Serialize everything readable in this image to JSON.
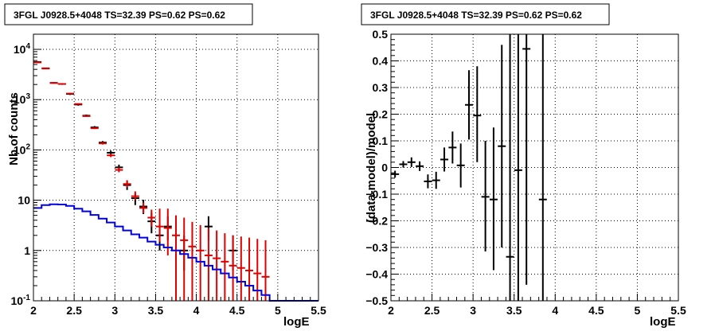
{
  "chart_data": [
    {
      "type": "scatter",
      "title": "3FGL J0928.5+4048 TS=32.39 PS=0.62 PS=0.62",
      "xlabel": "logE",
      "ylabel": "Nb of counts",
      "xlim": [
        2,
        5.5
      ],
      "ylim": [
        0.1,
        20000
      ],
      "yscale": "log",
      "grid": true,
      "x_ticks": [
        "2",
        "2.5",
        "3",
        "3.5",
        "4",
        "4.5",
        "5",
        "5.5"
      ],
      "y_ticks": [
        {
          "value": 0.1,
          "label": "10",
          "sup": "-1"
        },
        {
          "value": 1,
          "label": "1",
          "sup": ""
        },
        {
          "value": 10,
          "label": "10",
          "sup": ""
        },
        {
          "value": 100,
          "label": "10",
          "sup": "2"
        },
        {
          "value": 1000,
          "label": "10",
          "sup": "3"
        },
        {
          "value": 10000,
          "label": "10",
          "sup": "4"
        }
      ],
      "series": [
        {
          "color": "#000000",
          "style": "errorbar",
          "points": [
            {
              "x": 2.05,
              "y": 5600,
              "lo": 5450,
              "hi": 5750
            },
            {
              "x": 2.15,
              "y": 4200,
              "lo": 4080,
              "hi": 4320
            },
            {
              "x": 2.25,
              "y": 2150,
              "lo": 2070,
              "hi": 2230
            },
            {
              "x": 2.35,
              "y": 2050,
              "lo": 1970,
              "hi": 2130
            },
            {
              "x": 2.45,
              "y": 1300,
              "lo": 1240,
              "hi": 1360
            },
            {
              "x": 2.55,
              "y": 800,
              "lo": 760,
              "hi": 840
            },
            {
              "x": 2.65,
              "y": 480,
              "lo": 455,
              "hi": 505
            },
            {
              "x": 2.75,
              "y": 280,
              "lo": 262,
              "hi": 298
            },
            {
              "x": 2.85,
              "y": 140,
              "lo": 130,
              "hi": 150
            },
            {
              "x": 2.95,
              "y": 88,
              "lo": 79,
              "hi": 97
            },
            {
              "x": 3.05,
              "y": 45,
              "lo": 39,
              "hi": 51
            },
            {
              "x": 3.15,
              "y": 20,
              "lo": 16,
              "hi": 24
            },
            {
              "x": 3.25,
              "y": 11,
              "lo": 8,
              "hi": 14
            },
            {
              "x": 3.35,
              "y": 7.5,
              "lo": 5.3,
              "hi": 10.2
            },
            {
              "x": 3.45,
              "y": 3.8,
              "lo": 2.2,
              "hi": 5.6
            },
            {
              "x": 3.55,
              "y": 2.0,
              "lo": 1.0,
              "hi": 3.3
            },
            {
              "x": 3.65,
              "y": 3.0,
              "lo": 1.6,
              "hi": 4.8
            },
            {
              "x": 3.85,
              "y": 1.0,
              "lo": 0.4,
              "hi": 2.0
            },
            {
              "x": 4.15,
              "y": 3.0,
              "lo": 1.6,
              "hi": 4.8
            },
            {
              "x": 4.45,
              "y": 1.0,
              "lo": 0.4,
              "hi": 2.0
            }
          ]
        },
        {
          "color": "#e00000",
          "style": "errorbar",
          "points": [
            {
              "x": 2.05,
              "y": 5500,
              "lo": 5430,
              "hi": 5570
            },
            {
              "x": 2.15,
              "y": 4150,
              "lo": 4090,
              "hi": 4210
            },
            {
              "x": 2.25,
              "y": 2150,
              "lo": 2110,
              "hi": 2190
            },
            {
              "x": 2.35,
              "y": 2050,
              "lo": 2010,
              "hi": 2090
            },
            {
              "x": 2.45,
              "y": 1320,
              "lo": 1290,
              "hi": 1350
            },
            {
              "x": 2.55,
              "y": 820,
              "lo": 800,
              "hi": 840
            },
            {
              "x": 2.65,
              "y": 470,
              "lo": 455,
              "hi": 485
            },
            {
              "x": 2.75,
              "y": 270,
              "lo": 260,
              "hi": 280
            },
            {
              "x": 2.85,
              "y": 135,
              "lo": 128,
              "hi": 142
            },
            {
              "x": 2.95,
              "y": 78,
              "lo": 72,
              "hi": 84
            },
            {
              "x": 3.05,
              "y": 40,
              "lo": 36,
              "hi": 45
            },
            {
              "x": 3.15,
              "y": 21,
              "lo": 18,
              "hi": 25
            },
            {
              "x": 3.25,
              "y": 12,
              "lo": 10,
              "hi": 15
            },
            {
              "x": 3.35,
              "y": 7,
              "lo": 5.5,
              "hi": 9
            },
            {
              "x": 3.45,
              "y": 4.5,
              "lo": 3.0,
              "hi": 6.5
            },
            {
              "x": 3.55,
              "y": 3.0,
              "lo": 1.5,
              "hi": 6.8
            },
            {
              "x": 3.65,
              "y": 2.8,
              "lo": 0.8,
              "hi": 6.8
            },
            {
              "x": 3.75,
              "y": 2.0,
              "lo": 0.1,
              "hi": 5.0
            },
            {
              "x": 3.85,
              "y": 1.6,
              "lo": 0.1,
              "hi": 4.5
            },
            {
              "x": 3.95,
              "y": 1.2,
              "lo": 0.1,
              "hi": 3.7
            },
            {
              "x": 4.05,
              "y": 1.0,
              "lo": 0.1,
              "hi": 3.2
            },
            {
              "x": 4.15,
              "y": 0.8,
              "lo": 0.1,
              "hi": 2.8
            },
            {
              "x": 4.25,
              "y": 0.7,
              "lo": 0.1,
              "hi": 2.5
            },
            {
              "x": 4.35,
              "y": 0.6,
              "lo": 0.1,
              "hi": 2.2
            },
            {
              "x": 4.45,
              "y": 0.5,
              "lo": 0.1,
              "hi": 2.0
            },
            {
              "x": 4.55,
              "y": 0.45,
              "lo": 0.1,
              "hi": 1.9
            },
            {
              "x": 4.65,
              "y": 0.4,
              "lo": 0.1,
              "hi": 1.8
            },
            {
              "x": 4.75,
              "y": 0.35,
              "lo": 0.1,
              "hi": 1.7
            },
            {
              "x": 4.85,
              "y": 0.3,
              "lo": 0.1,
              "hi": 1.6
            }
          ]
        },
        {
          "color": "#0000e0",
          "style": "step",
          "bin_width": 0.1,
          "points": [
            {
              "x": 2.05,
              "y": 7.0
            },
            {
              "x": 2.15,
              "y": 8.0
            },
            {
              "x": 2.25,
              "y": 8.3
            },
            {
              "x": 2.35,
              "y": 8.2
            },
            {
              "x": 2.45,
              "y": 7.7
            },
            {
              "x": 2.55,
              "y": 6.8
            },
            {
              "x": 2.65,
              "y": 6.0
            },
            {
              "x": 2.75,
              "y": 5.1
            },
            {
              "x": 2.85,
              "y": 4.3
            },
            {
              "x": 2.95,
              "y": 3.6
            },
            {
              "x": 3.05,
              "y": 3.0
            },
            {
              "x": 3.15,
              "y": 2.5
            },
            {
              "x": 3.25,
              "y": 2.1
            },
            {
              "x": 3.35,
              "y": 1.8
            },
            {
              "x": 3.45,
              "y": 1.5
            },
            {
              "x": 3.55,
              "y": 1.3
            },
            {
              "x": 3.65,
              "y": 1.15
            },
            {
              "x": 3.75,
              "y": 1.0
            },
            {
              "x": 3.85,
              "y": 0.85
            },
            {
              "x": 3.95,
              "y": 0.72
            },
            {
              "x": 4.05,
              "y": 0.6
            },
            {
              "x": 4.15,
              "y": 0.5
            },
            {
              "x": 4.25,
              "y": 0.42
            },
            {
              "x": 4.35,
              "y": 0.35
            },
            {
              "x": 4.45,
              "y": 0.29
            },
            {
              "x": 4.55,
              "y": 0.24
            },
            {
              "x": 4.65,
              "y": 0.2
            },
            {
              "x": 4.75,
              "y": 0.16
            },
            {
              "x": 4.85,
              "y": 0.13
            },
            {
              "x": 4.95,
              "y": 0.1
            },
            {
              "x": 5.05,
              "y": 0.1
            },
            {
              "x": 5.15,
              "y": 0.1
            },
            {
              "x": 5.25,
              "y": 0.1
            },
            {
              "x": 5.35,
              "y": 0.1
            },
            {
              "x": 5.45,
              "y": 0.1
            }
          ]
        }
      ]
    },
    {
      "type": "scatter",
      "title": "3FGL J0928.5+4048 TS=32.39 PS=0.62 PS=0.62",
      "xlabel": "logE",
      "ylabel": "(data-model)/model",
      "xlim": [
        2,
        5.5
      ],
      "ylim": [
        -0.5,
        0.5
      ],
      "grid": true,
      "x_ticks": [
        "2",
        "2.5",
        "3",
        "3.5",
        "4",
        "4.5",
        "5",
        "5.5"
      ],
      "y_ticks": [
        "−0.5",
        "−0.4",
        "−0.3",
        "−0.2",
        "−0.1",
        "0",
        "0.1",
        "0.2",
        "0.3",
        "0.4",
        "0.5"
      ],
      "series": [
        {
          "color": "#000000",
          "style": "errorbar",
          "points": [
            {
              "x": 2.05,
              "y": -0.025,
              "lo": -0.038,
              "hi": -0.012
            },
            {
              "x": 2.15,
              "y": 0.012,
              "lo": 0.0,
              "hi": 0.024
            },
            {
              "x": 2.25,
              "y": 0.02,
              "lo": 0.002,
              "hi": 0.038
            },
            {
              "x": 2.35,
              "y": 0.005,
              "lo": -0.013,
              "hi": 0.023
            },
            {
              "x": 2.45,
              "y": -0.052,
              "lo": -0.078,
              "hi": -0.026
            },
            {
              "x": 2.55,
              "y": -0.048,
              "lo": -0.08,
              "hi": -0.016
            },
            {
              "x": 2.65,
              "y": 0.03,
              "lo": -0.015,
              "hi": 0.075
            },
            {
              "x": 2.75,
              "y": 0.075,
              "lo": 0.015,
              "hi": 0.135
            },
            {
              "x": 2.85,
              "y": 0.008,
              "lo": -0.075,
              "hi": 0.09
            },
            {
              "x": 2.95,
              "y": 0.235,
              "lo": 0.105,
              "hi": 0.365
            },
            {
              "x": 3.05,
              "y": 0.195,
              "lo": 0.02,
              "hi": 0.38
            },
            {
              "x": 3.15,
              "y": -0.11,
              "lo": -0.315,
              "hi": 0.1
            },
            {
              "x": 3.25,
              "y": -0.12,
              "lo": -0.385,
              "hi": 0.15
            },
            {
              "x": 3.35,
              "y": 0.08,
              "lo": -0.3,
              "hi": 0.46
            },
            {
              "x": 3.45,
              "y": -0.335,
              "lo": -0.5,
              "hi": 0.5
            },
            {
              "x": 3.55,
              "y": -0.01,
              "lo": -0.5,
              "hi": 0.5
            },
            {
              "x": 3.65,
              "y": 0.445,
              "lo": -0.44,
              "hi": 0.5
            },
            {
              "x": 3.85,
              "y": -0.12,
              "lo": -0.5,
              "hi": 0.5
            }
          ]
        }
      ]
    }
  ]
}
